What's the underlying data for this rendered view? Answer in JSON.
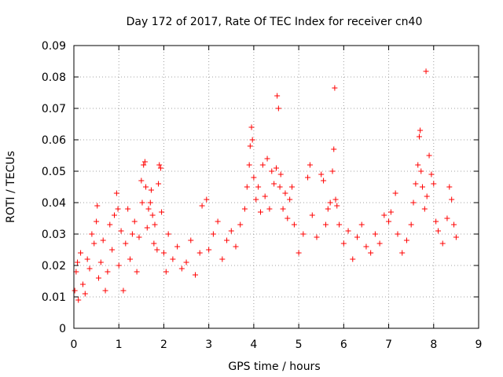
{
  "chart_data": {
    "type": "scatter",
    "title": "Day 172 of 2017, Rate Of TEC Index for receiver cn40",
    "xlabel": "GPS time / hours",
    "ylabel": "ROTI / TECUs",
    "xlim": [
      0,
      9
    ],
    "ylim": [
      0,
      0.09
    ],
    "x_ticks": [
      "0",
      "1",
      "2",
      "3",
      "4",
      "5",
      "6",
      "7",
      "8",
      "9"
    ],
    "y_ticks": [
      "0",
      "0.01",
      "0.02",
      "0.03",
      "0.04",
      "0.05",
      "0.06",
      "0.07",
      "0.08",
      "0.09"
    ],
    "grid": true,
    "marker": "+",
    "color": "#ff0000",
    "series": [
      {
        "name": "ROTI",
        "points": [
          [
            0.02,
            0.012
          ],
          [
            0.05,
            0.018
          ],
          [
            0.08,
            0.021
          ],
          [
            0.1,
            0.009
          ],
          [
            0.15,
            0.024
          ],
          [
            0.2,
            0.014
          ],
          [
            0.25,
            0.011
          ],
          [
            0.3,
            0.022
          ],
          [
            0.35,
            0.019
          ],
          [
            0.4,
            0.03
          ],
          [
            0.45,
            0.027
          ],
          [
            0.5,
            0.034
          ],
          [
            0.52,
            0.039
          ],
          [
            0.55,
            0.016
          ],
          [
            0.6,
            0.021
          ],
          [
            0.65,
            0.028
          ],
          [
            0.7,
            0.012
          ],
          [
            0.75,
            0.018
          ],
          [
            0.8,
            0.033
          ],
          [
            0.85,
            0.025
          ],
          [
            0.9,
            0.036
          ],
          [
            0.95,
            0.043
          ],
          [
            0.98,
            0.038
          ],
          [
            1.0,
            0.02
          ],
          [
            1.05,
            0.031
          ],
          [
            1.1,
            0.012
          ],
          [
            1.15,
            0.027
          ],
          [
            1.2,
            0.038
          ],
          [
            1.25,
            0.022
          ],
          [
            1.3,
            0.03
          ],
          [
            1.35,
            0.034
          ],
          [
            1.4,
            0.018
          ],
          [
            1.45,
            0.029
          ],
          [
            1.5,
            0.047
          ],
          [
            1.52,
            0.04
          ],
          [
            1.55,
            0.052
          ],
          [
            1.58,
            0.053
          ],
          [
            1.6,
            0.045
          ],
          [
            1.63,
            0.032
          ],
          [
            1.66,
            0.038
          ],
          [
            1.7,
            0.04
          ],
          [
            1.72,
            0.044
          ],
          [
            1.75,
            0.036
          ],
          [
            1.78,
            0.027
          ],
          [
            1.8,
            0.033
          ],
          [
            1.85,
            0.025
          ],
          [
            1.88,
            0.046
          ],
          [
            1.9,
            0.052
          ],
          [
            1.93,
            0.051
          ],
          [
            1.95,
            0.037
          ],
          [
            2.0,
            0.024
          ],
          [
            2.05,
            0.018
          ],
          [
            2.1,
            0.03
          ],
          [
            2.2,
            0.022
          ],
          [
            2.3,
            0.026
          ],
          [
            2.4,
            0.019
          ],
          [
            2.5,
            0.021
          ],
          [
            2.6,
            0.028
          ],
          [
            2.7,
            0.017
          ],
          [
            2.8,
            0.024
          ],
          [
            2.85,
            0.039
          ],
          [
            2.95,
            0.041
          ],
          [
            3.0,
            0.025
          ],
          [
            3.1,
            0.03
          ],
          [
            3.2,
            0.034
          ],
          [
            3.3,
            0.022
          ],
          [
            3.4,
            0.028
          ],
          [
            3.5,
            0.031
          ],
          [
            3.6,
            0.026
          ],
          [
            3.7,
            0.033
          ],
          [
            3.8,
            0.038
          ],
          [
            3.85,
            0.045
          ],
          [
            3.9,
            0.052
          ],
          [
            3.92,
            0.058
          ],
          [
            3.95,
            0.064
          ],
          [
            3.97,
            0.06
          ],
          [
            4.0,
            0.048
          ],
          [
            4.05,
            0.041
          ],
          [
            4.1,
            0.045
          ],
          [
            4.15,
            0.037
          ],
          [
            4.2,
            0.052
          ],
          [
            4.25,
            0.042
          ],
          [
            4.3,
            0.054
          ],
          [
            4.35,
            0.038
          ],
          [
            4.4,
            0.05
          ],
          [
            4.45,
            0.046
          ],
          [
            4.5,
            0.051
          ],
          [
            4.52,
            0.074
          ],
          [
            4.55,
            0.07
          ],
          [
            4.58,
            0.045
          ],
          [
            4.6,
            0.049
          ],
          [
            4.65,
            0.038
          ],
          [
            4.7,
            0.043
          ],
          [
            4.75,
            0.035
          ],
          [
            4.8,
            0.041
          ],
          [
            4.85,
            0.045
          ],
          [
            4.9,
            0.033
          ],
          [
            5.0,
            0.024
          ],
          [
            5.1,
            0.03
          ],
          [
            5.2,
            0.048
          ],
          [
            5.25,
            0.052
          ],
          [
            5.3,
            0.036
          ],
          [
            5.4,
            0.029
          ],
          [
            5.5,
            0.049
          ],
          [
            5.55,
            0.047
          ],
          [
            5.6,
            0.033
          ],
          [
            5.65,
            0.038
          ],
          [
            5.7,
            0.04
          ],
          [
            5.75,
            0.05
          ],
          [
            5.78,
            0.057
          ],
          [
            5.8,
            0.0765
          ],
          [
            5.82,
            0.041
          ],
          [
            5.85,
            0.039
          ],
          [
            5.9,
            0.033
          ],
          [
            6.0,
            0.027
          ],
          [
            6.1,
            0.031
          ],
          [
            6.2,
            0.022
          ],
          [
            6.3,
            0.029
          ],
          [
            6.4,
            0.033
          ],
          [
            6.5,
            0.026
          ],
          [
            6.6,
            0.024
          ],
          [
            6.7,
            0.03
          ],
          [
            6.8,
            0.027
          ],
          [
            6.9,
            0.036
          ],
          [
            7.0,
            0.034
          ],
          [
            7.05,
            0.037
          ],
          [
            7.15,
            0.043
          ],
          [
            7.2,
            0.03
          ],
          [
            7.3,
            0.024
          ],
          [
            7.4,
            0.028
          ],
          [
            7.5,
            0.033
          ],
          [
            7.55,
            0.04
          ],
          [
            7.6,
            0.046
          ],
          [
            7.65,
            0.052
          ],
          [
            7.68,
            0.061
          ],
          [
            7.7,
            0.063
          ],
          [
            7.72,
            0.05
          ],
          [
            7.75,
            0.045
          ],
          [
            7.8,
            0.038
          ],
          [
            7.83,
            0.0818
          ],
          [
            7.85,
            0.042
          ],
          [
            7.9,
            0.055
          ],
          [
            7.95,
            0.049
          ],
          [
            8.0,
            0.046
          ],
          [
            8.05,
            0.034
          ],
          [
            8.1,
            0.031
          ],
          [
            8.2,
            0.027
          ],
          [
            8.3,
            0.035
          ],
          [
            8.35,
            0.045
          ],
          [
            8.4,
            0.041
          ],
          [
            8.45,
            0.033
          ],
          [
            8.5,
            0.029
          ]
        ]
      }
    ]
  }
}
